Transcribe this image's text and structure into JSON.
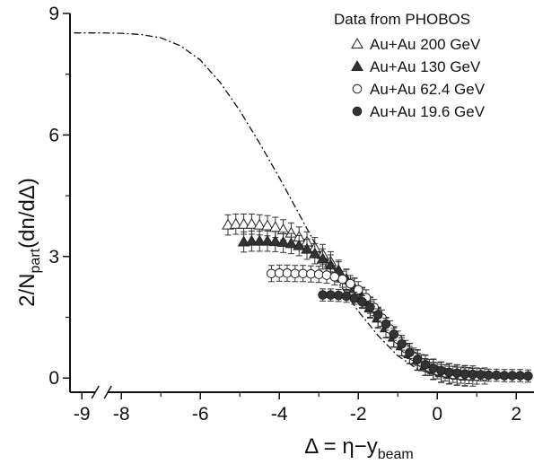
{
  "chart_data": {
    "type": "scatter",
    "xlabel": "Δ = η−y",
    "xlabel_sub": "beam",
    "ylabel": "2/N",
    "ylabel_sub": "part",
    "ylabel_tail": "(dn/dΔ)",
    "xlim": [
      -9.3,
      2.45
    ],
    "ylim": [
      -0.35,
      9
    ],
    "x_axis_break": true,
    "x_ticks": [
      {
        "v": -9,
        "label": "-9"
      },
      {
        "v": -8,
        "label": "-8"
      },
      {
        "v": -6,
        "label": "-6"
      },
      {
        "v": -4,
        "label": "-4"
      },
      {
        "v": -2,
        "label": "-2"
      },
      {
        "v": 0,
        "label": "0"
      },
      {
        "v": 2,
        "label": "2"
      }
    ],
    "y_ticks": [
      {
        "v": 0,
        "label": "0"
      },
      {
        "v": 3,
        "label": "3"
      },
      {
        "v": 6,
        "label": "6"
      },
      {
        "v": 9,
        "label": "9"
      }
    ],
    "legend": {
      "title": "Data from PHOBOS",
      "position": "top-right"
    },
    "series": [
      {
        "name": "Au+Au 200 GeV",
        "marker": "triangle-open",
        "err": 0.25,
        "points": [
          [
            -5.3,
            3.78
          ],
          [
            -5.1,
            3.8
          ],
          [
            -4.9,
            3.8
          ],
          [
            -4.7,
            3.8
          ],
          [
            -4.5,
            3.78
          ],
          [
            -4.3,
            3.76
          ],
          [
            -4.1,
            3.72
          ],
          [
            -3.9,
            3.66
          ],
          [
            -3.7,
            3.58
          ],
          [
            -3.5,
            3.48
          ],
          [
            -3.3,
            3.36
          ],
          [
            -3.1,
            3.22
          ],
          [
            -2.9,
            3.05
          ],
          [
            -2.7,
            2.87
          ],
          [
            -2.5,
            2.66
          ],
          [
            -2.3,
            2.44
          ],
          [
            -2.1,
            2.21
          ],
          [
            -1.9,
            1.97
          ],
          [
            -1.7,
            1.73
          ],
          [
            -1.5,
            1.48
          ],
          [
            -1.3,
            1.24
          ],
          [
            -1.1,
            1.01
          ],
          [
            -0.9,
            0.8
          ],
          [
            -0.7,
            0.61
          ],
          [
            -0.5,
            0.45
          ],
          [
            -0.3,
            0.32
          ],
          [
            -0.1,
            0.22
          ],
          [
            0.1,
            0.15
          ],
          [
            0.3,
            0.11
          ],
          [
            0.5,
            0.08
          ],
          [
            0.7,
            0.06
          ],
          [
            0.9,
            0.05
          ]
        ]
      },
      {
        "name": "Au+Au 130 GeV",
        "marker": "triangle-filled",
        "err": 0.25,
        "points": [
          [
            -4.9,
            3.36
          ],
          [
            -4.7,
            3.38
          ],
          [
            -4.5,
            3.38
          ],
          [
            -4.3,
            3.38
          ],
          [
            -4.1,
            3.37
          ],
          [
            -3.9,
            3.35
          ],
          [
            -3.7,
            3.32
          ],
          [
            -3.5,
            3.27
          ],
          [
            -3.3,
            3.18
          ],
          [
            -3.1,
            3.07
          ],
          [
            -2.9,
            2.94
          ],
          [
            -2.7,
            2.79
          ],
          [
            -2.5,
            2.62
          ],
          [
            -2.3,
            2.43
          ],
          [
            -2.1,
            2.22
          ],
          [
            -1.9,
            1.99
          ],
          [
            -1.7,
            1.75
          ],
          [
            -1.5,
            1.5
          ],
          [
            -1.3,
            1.25
          ],
          [
            -1.1,
            1.02
          ],
          [
            -0.9,
            0.8
          ],
          [
            -0.7,
            0.6
          ],
          [
            -0.5,
            0.44
          ],
          [
            -0.3,
            0.31
          ],
          [
            -0.1,
            0.21
          ],
          [
            0.1,
            0.14
          ],
          [
            0.3,
            0.1
          ],
          [
            0.5,
            0.07
          ],
          [
            0.7,
            0.05
          ]
        ]
      },
      {
        "name": "Au+Au 62.4 GeV",
        "marker": "circle-open",
        "err": 0.2,
        "points": [
          [
            -4.2,
            2.58
          ],
          [
            -4.0,
            2.59
          ],
          [
            -3.8,
            2.59
          ],
          [
            -3.6,
            2.58
          ],
          [
            -3.4,
            2.58
          ],
          [
            -3.2,
            2.57
          ],
          [
            -3.0,
            2.56
          ],
          [
            -2.8,
            2.54
          ],
          [
            -2.6,
            2.5
          ],
          [
            -2.4,
            2.44
          ],
          [
            -2.2,
            2.33
          ],
          [
            -2.0,
            2.18
          ],
          [
            -1.8,
            1.98
          ],
          [
            -1.6,
            1.74
          ],
          [
            -1.4,
            1.48
          ],
          [
            -1.2,
            1.21
          ],
          [
            -1.0,
            0.96
          ],
          [
            -0.8,
            0.73
          ],
          [
            -0.6,
            0.54
          ],
          [
            -0.4,
            0.38
          ],
          [
            -0.2,
            0.26
          ],
          [
            0.0,
            0.18
          ],
          [
            0.2,
            0.13
          ],
          [
            0.4,
            0.09
          ],
          [
            0.6,
            0.07
          ],
          [
            0.8,
            0.06
          ],
          [
            1.0,
            0.05
          ],
          [
            1.2,
            0.05
          ]
        ]
      },
      {
        "name": "Au+Au 19.6 GeV",
        "marker": "circle-filled",
        "err": 0.15,
        "points": [
          [
            -2.9,
            2.05
          ],
          [
            -2.7,
            2.05
          ],
          [
            -2.5,
            2.04
          ],
          [
            -2.3,
            2.02
          ],
          [
            -2.1,
            1.97
          ],
          [
            -1.9,
            1.88
          ],
          [
            -1.7,
            1.75
          ],
          [
            -1.5,
            1.56
          ],
          [
            -1.3,
            1.33
          ],
          [
            -1.1,
            1.08
          ],
          [
            -0.9,
            0.84
          ],
          [
            -0.7,
            0.63
          ],
          [
            -0.5,
            0.46
          ],
          [
            -0.3,
            0.33
          ],
          [
            -0.1,
            0.24
          ],
          [
            0.1,
            0.18
          ],
          [
            0.3,
            0.14
          ],
          [
            0.5,
            0.12
          ],
          [
            0.7,
            0.1
          ],
          [
            0.9,
            0.09
          ],
          [
            1.1,
            0.08
          ],
          [
            1.3,
            0.07
          ],
          [
            1.5,
            0.07
          ],
          [
            1.7,
            0.06
          ],
          [
            1.9,
            0.06
          ],
          [
            2.1,
            0.06
          ],
          [
            2.3,
            0.05
          ]
        ]
      }
    ],
    "curves": [
      {
        "name": "fit-200",
        "style": "solid",
        "points": [
          [
            -5.3,
            3.7
          ],
          [
            -5.0,
            3.75
          ],
          [
            -4.5,
            3.74
          ],
          [
            -4.0,
            3.66
          ],
          [
            -3.5,
            3.48
          ],
          [
            -3.0,
            3.12
          ],
          [
            -2.5,
            2.64
          ],
          [
            -2.0,
            2.09
          ],
          [
            -1.5,
            1.49
          ],
          [
            -1.0,
            0.9
          ],
          [
            -0.5,
            0.45
          ],
          [
            0.0,
            0.18
          ],
          [
            0.5,
            0.07
          ],
          [
            1.0,
            0.03
          ],
          [
            1.5,
            0.01
          ],
          [
            2.3,
            0.0
          ]
        ]
      },
      {
        "name": "fit-130",
        "style": "solid",
        "points": [
          [
            -4.9,
            3.32
          ],
          [
            -4.5,
            3.36
          ],
          [
            -4.0,
            3.34
          ],
          [
            -3.5,
            3.24
          ],
          [
            -3.0,
            3.0
          ],
          [
            -2.5,
            2.6
          ],
          [
            -2.0,
            2.1
          ],
          [
            -1.5,
            1.5
          ],
          [
            -1.0,
            0.92
          ],
          [
            -0.5,
            0.45
          ],
          [
            0.0,
            0.17
          ],
          [
            0.5,
            0.06
          ],
          [
            1.0,
            0.02
          ],
          [
            2.3,
            0.0
          ]
        ]
      },
      {
        "name": "fit-62",
        "style": "solid",
        "points": [
          [
            -4.2,
            2.58
          ],
          [
            -3.5,
            2.58
          ],
          [
            -3.0,
            2.54
          ],
          [
            -2.5,
            2.42
          ],
          [
            -2.0,
            2.14
          ],
          [
            -1.5,
            1.62
          ],
          [
            -1.0,
            0.98
          ],
          [
            -0.5,
            0.47
          ],
          [
            0.0,
            0.18
          ],
          [
            0.5,
            0.08
          ],
          [
            1.0,
            0.04
          ],
          [
            2.3,
            0.01
          ]
        ]
      },
      {
        "name": "fit-19",
        "style": "solid",
        "points": [
          [
            -2.9,
            2.04
          ],
          [
            -2.5,
            2.03
          ],
          [
            -2.0,
            1.94
          ],
          [
            -1.5,
            1.58
          ],
          [
            -1.0,
            0.99
          ],
          [
            -0.5,
            0.48
          ],
          [
            0.0,
            0.22
          ],
          [
            0.5,
            0.12
          ],
          [
            1.0,
            0.08
          ],
          [
            1.5,
            0.06
          ],
          [
            2.3,
            0.05
          ]
        ]
      },
      {
        "name": "limiting-curve",
        "style": "dashdot",
        "points": [
          [
            -9.2,
            8.52
          ],
          [
            -8.5,
            8.52
          ],
          [
            -8.0,
            8.51
          ],
          [
            -7.5,
            8.48
          ],
          [
            -7.0,
            8.4
          ],
          [
            -6.5,
            8.2
          ],
          [
            -6.0,
            7.85
          ],
          [
            -5.5,
            7.3
          ],
          [
            -5.0,
            6.6
          ],
          [
            -4.5,
            5.8
          ],
          [
            -4.0,
            4.95
          ],
          [
            -3.5,
            4.05
          ],
          [
            -3.0,
            3.15
          ],
          [
            -2.5,
            2.35
          ],
          [
            -2.0,
            1.65
          ],
          [
            -1.5,
            1.05
          ],
          [
            -1.0,
            0.55
          ],
          [
            -0.5,
            0.22
          ],
          [
            0.0,
            0.06
          ],
          [
            0.5,
            0.01
          ],
          [
            1.0,
            0.0
          ]
        ]
      }
    ]
  }
}
